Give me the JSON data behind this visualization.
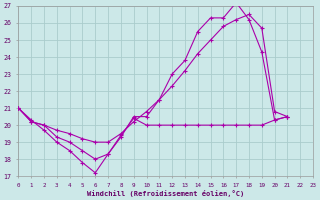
{
  "xlabel": "Windchill (Refroidissement éolien,°C)",
  "xlim": [
    0,
    23
  ],
  "ylim": [
    17,
    27
  ],
  "yticks": [
    17,
    18,
    19,
    20,
    21,
    22,
    23,
    24,
    25,
    26,
    27
  ],
  "xticks": [
    0,
    1,
    2,
    3,
    4,
    5,
    6,
    7,
    8,
    9,
    10,
    11,
    12,
    13,
    14,
    15,
    16,
    17,
    18,
    19,
    20,
    21,
    22,
    23
  ],
  "bg_color": "#cce8e8",
  "grid_color": "#aacccc",
  "line_color": "#aa00aa",
  "curve1_x": [
    0,
    1,
    2,
    3,
    4,
    5,
    6,
    7,
    8,
    9,
    10,
    11,
    12,
    13,
    14,
    15,
    16,
    17,
    18,
    19,
    20,
    21
  ],
  "curve1_y": [
    21.0,
    20.3,
    19.7,
    19.0,
    18.5,
    17.8,
    17.2,
    18.3,
    19.3,
    20.5,
    20.5,
    21.5,
    23.0,
    23.8,
    25.5,
    26.3,
    26.3,
    27.2,
    26.2,
    24.3,
    20.3,
    20.5
  ],
  "curve2_x": [
    0,
    1,
    2,
    3,
    4,
    5,
    6,
    7,
    8,
    9,
    10,
    11,
    12,
    13,
    14,
    15,
    16,
    17,
    18,
    19,
    20,
    21
  ],
  "curve2_y": [
    21.0,
    20.2,
    20.0,
    19.7,
    19.5,
    19.2,
    19.0,
    19.0,
    19.5,
    20.2,
    20.8,
    21.5,
    22.3,
    23.2,
    24.2,
    25.0,
    25.8,
    26.2,
    26.5,
    25.7,
    20.8,
    20.5
  ],
  "curve3_x": [
    0,
    1,
    2,
    3,
    4,
    5,
    6,
    7,
    8,
    9,
    10,
    11,
    12,
    13,
    14,
    15,
    16,
    17,
    18,
    19,
    20,
    21
  ],
  "curve3_y": [
    21.0,
    20.2,
    20.0,
    19.3,
    19.0,
    18.5,
    18.0,
    18.3,
    19.4,
    20.4,
    20.0,
    20.0,
    20.0,
    20.0,
    20.0,
    20.0,
    20.0,
    20.0,
    20.0,
    20.0,
    20.3,
    20.5
  ]
}
